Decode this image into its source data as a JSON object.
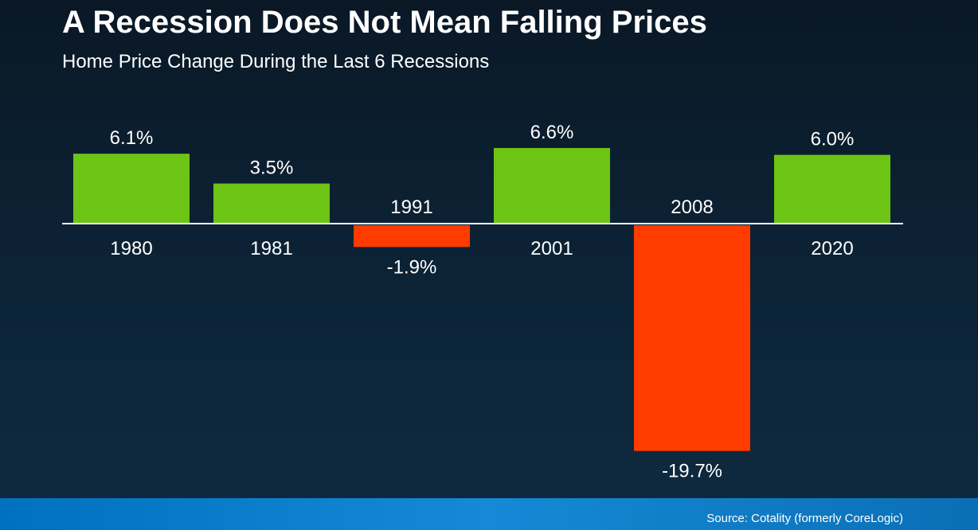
{
  "title": "A Recession Does Not Mean Falling Prices",
  "subtitle": "Home Price Change During the Last 6 Recessions",
  "source": "Source: Cotality (formerly CoreLogic)",
  "colors": {
    "positive": "#6cc414",
    "negative": "#ff3b00",
    "axis": "#ffffff"
  },
  "chart_data": {
    "type": "bar",
    "title": "A Recession Does Not Mean Falling Prices",
    "subtitle": "Home Price Change During the Last 6 Recessions",
    "categories": [
      "1980",
      "1981",
      "1991",
      "2001",
      "2008",
      "2020"
    ],
    "values": [
      6.1,
      3.5,
      -1.9,
      6.6,
      -19.7,
      6.0
    ],
    "value_labels": [
      "6.1%",
      "3.5%",
      "-1.9%",
      "6.6%",
      "-19.7%",
      "6.0%"
    ],
    "xlabel": "",
    "ylabel": "",
    "grid": false,
    "legend": "none"
  }
}
